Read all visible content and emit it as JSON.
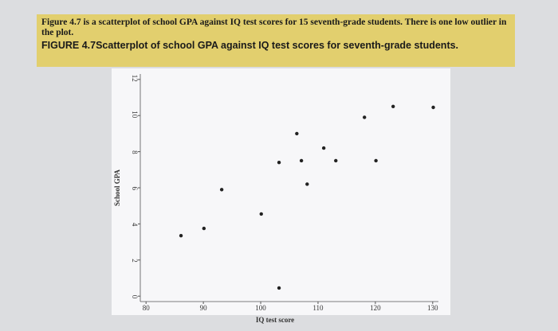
{
  "caption": {
    "text": "Figure 4.7 is a scatterplot of school GPA against IQ test scores for 15 seventh-grade students. There is one low outlier in the plot.",
    "figure": "FIGURE 4.7Scatterplot of school GPA against IQ test scores for seventh-grade students."
  },
  "chart_data": {
    "type": "scatter",
    "x_label": "IQ test score",
    "y_label": "School GPA",
    "color": "#222222",
    "x": [
      86.1,
      90.1,
      93.2,
      100.1,
      103.2,
      103.2,
      106.3,
      107.1,
      108.1,
      111.0,
      113.1,
      118.1,
      120.1,
      123.1,
      130.1
    ],
    "values": [
      3.35,
      3.75,
      5.9,
      4.55,
      0.45,
      7.4,
      9.0,
      7.5,
      6.2,
      8.2,
      7.5,
      9.9,
      7.5,
      10.5,
      10.45
    ],
    "xlim": [
      79,
      131
    ],
    "ylim": [
      -0.3,
      12.3
    ],
    "xticks": [
      80,
      90,
      100,
      110,
      120,
      130
    ],
    "yticks": [
      0,
      2,
      4,
      6,
      8,
      10,
      12
    ]
  }
}
